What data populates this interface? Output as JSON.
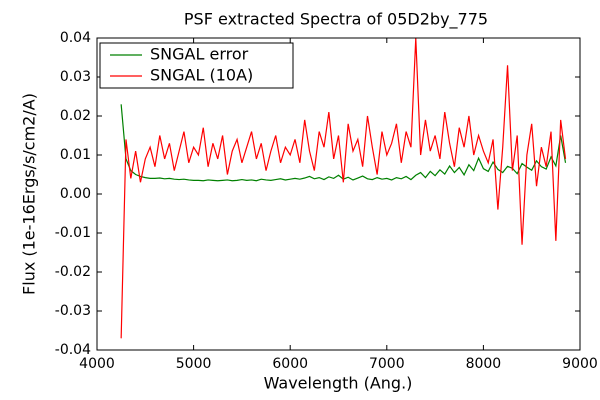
{
  "chart_data": {
    "type": "line",
    "title": "PSF extracted Spectra of 05D2by_775",
    "x_label": "Wavelength (Ang.)",
    "y_label": "Flux (1e-16Ergs/s/cm2/A)",
    "x": [
      4250,
      4300,
      4350,
      4400,
      4450,
      4500,
      4550,
      4600,
      4650,
      4700,
      4750,
      4800,
      4850,
      4900,
      4950,
      5000,
      5050,
      5100,
      5150,
      5200,
      5250,
      5300,
      5350,
      5400,
      5450,
      5500,
      5550,
      5600,
      5650,
      5700,
      5750,
      5800,
      5850,
      5900,
      5950,
      6000,
      6050,
      6100,
      6150,
      6200,
      6250,
      6300,
      6350,
      6400,
      6450,
      6500,
      6550,
      6600,
      6650,
      6700,
      6750,
      6800,
      6850,
      6900,
      6950,
      7000,
      7050,
      7100,
      7150,
      7200,
      7250,
      7300,
      7350,
      7400,
      7450,
      7500,
      7550,
      7600,
      7650,
      7700,
      7750,
      7800,
      7850,
      7900,
      7950,
      8000,
      8050,
      8100,
      8150,
      8200,
      8250,
      8300,
      8350,
      8400,
      8450,
      8500,
      8550,
      8600,
      8650,
      8700,
      8750,
      8800,
      8850
    ],
    "series": [
      {
        "name": "SNGAL error",
        "color": "#008000",
        "values": [
          0.023,
          0.009,
          0.006,
          0.005,
          0.0045,
          0.0042,
          0.004,
          0.004,
          0.0041,
          0.0039,
          0.004,
          0.0038,
          0.0037,
          0.0038,
          0.0036,
          0.0035,
          0.0035,
          0.0034,
          0.0036,
          0.0035,
          0.0034,
          0.0035,
          0.0036,
          0.0034,
          0.0035,
          0.0037,
          0.0035,
          0.0036,
          0.0034,
          0.0038,
          0.0036,
          0.0035,
          0.0037,
          0.0039,
          0.0036,
          0.0038,
          0.004,
          0.0038,
          0.0041,
          0.0045,
          0.0039,
          0.0042,
          0.0037,
          0.0044,
          0.004,
          0.0048,
          0.0038,
          0.0043,
          0.0036,
          0.0041,
          0.0046,
          0.0039,
          0.0037,
          0.0042,
          0.0038,
          0.004,
          0.0036,
          0.0042,
          0.0039,
          0.0045,
          0.0037,
          0.0048,
          0.0055,
          0.0042,
          0.0058,
          0.0047,
          0.0062,
          0.0051,
          0.0072,
          0.0055,
          0.0068,
          0.0049,
          0.0075,
          0.006,
          0.0092,
          0.0065,
          0.0058,
          0.0082,
          0.0063,
          0.0055,
          0.0071,
          0.0066,
          0.0052,
          0.0078,
          0.0069,
          0.0061,
          0.0085,
          0.007,
          0.0064,
          0.0095,
          0.0072,
          0.015,
          0.008
        ]
      },
      {
        "name": "SNGAL (10A)",
        "color": "#ff0000",
        "values": [
          -0.037,
          0.014,
          0.004,
          0.011,
          0.003,
          0.009,
          0.012,
          0.007,
          0.015,
          0.009,
          0.013,
          0.006,
          0.011,
          0.016,
          0.008,
          0.012,
          0.01,
          0.017,
          0.007,
          0.013,
          0.009,
          0.015,
          0.005,
          0.011,
          0.014,
          0.008,
          0.012,
          0.016,
          0.009,
          0.013,
          0.006,
          0.011,
          0.015,
          0.008,
          0.012,
          0.01,
          0.014,
          0.008,
          0.019,
          0.011,
          0.006,
          0.016,
          0.012,
          0.021,
          0.009,
          0.015,
          0.003,
          0.018,
          0.011,
          0.014,
          0.007,
          0.02,
          0.012,
          0.005,
          0.016,
          0.01,
          0.013,
          0.018,
          0.008,
          0.016,
          0.012,
          0.04,
          0.01,
          0.019,
          0.011,
          0.015,
          0.009,
          0.021,
          0.013,
          0.007,
          0.017,
          0.012,
          0.02,
          0.01,
          0.015,
          0.011,
          0.008,
          0.014,
          -0.004,
          0.012,
          0.033,
          0.006,
          0.015,
          -0.013,
          0.01,
          0.018,
          0.002,
          0.012,
          0.007,
          0.016,
          -0.012,
          0.019,
          0.009
        ]
      }
    ],
    "xlim": [
      4000,
      9000
    ],
    "xticks": [
      4000,
      5000,
      6000,
      7000,
      8000,
      9000
    ],
    "ylim": [
      -0.04,
      0.04
    ],
    "yticks": [
      -0.04,
      -0.03,
      -0.02,
      -0.01,
      {
        "value": 0,
        "label": "0.00"
      },
      0.01,
      0.02,
      0.03,
      0.04
    ],
    "legend": "upper left",
    "title_color": "#ff0000"
  }
}
